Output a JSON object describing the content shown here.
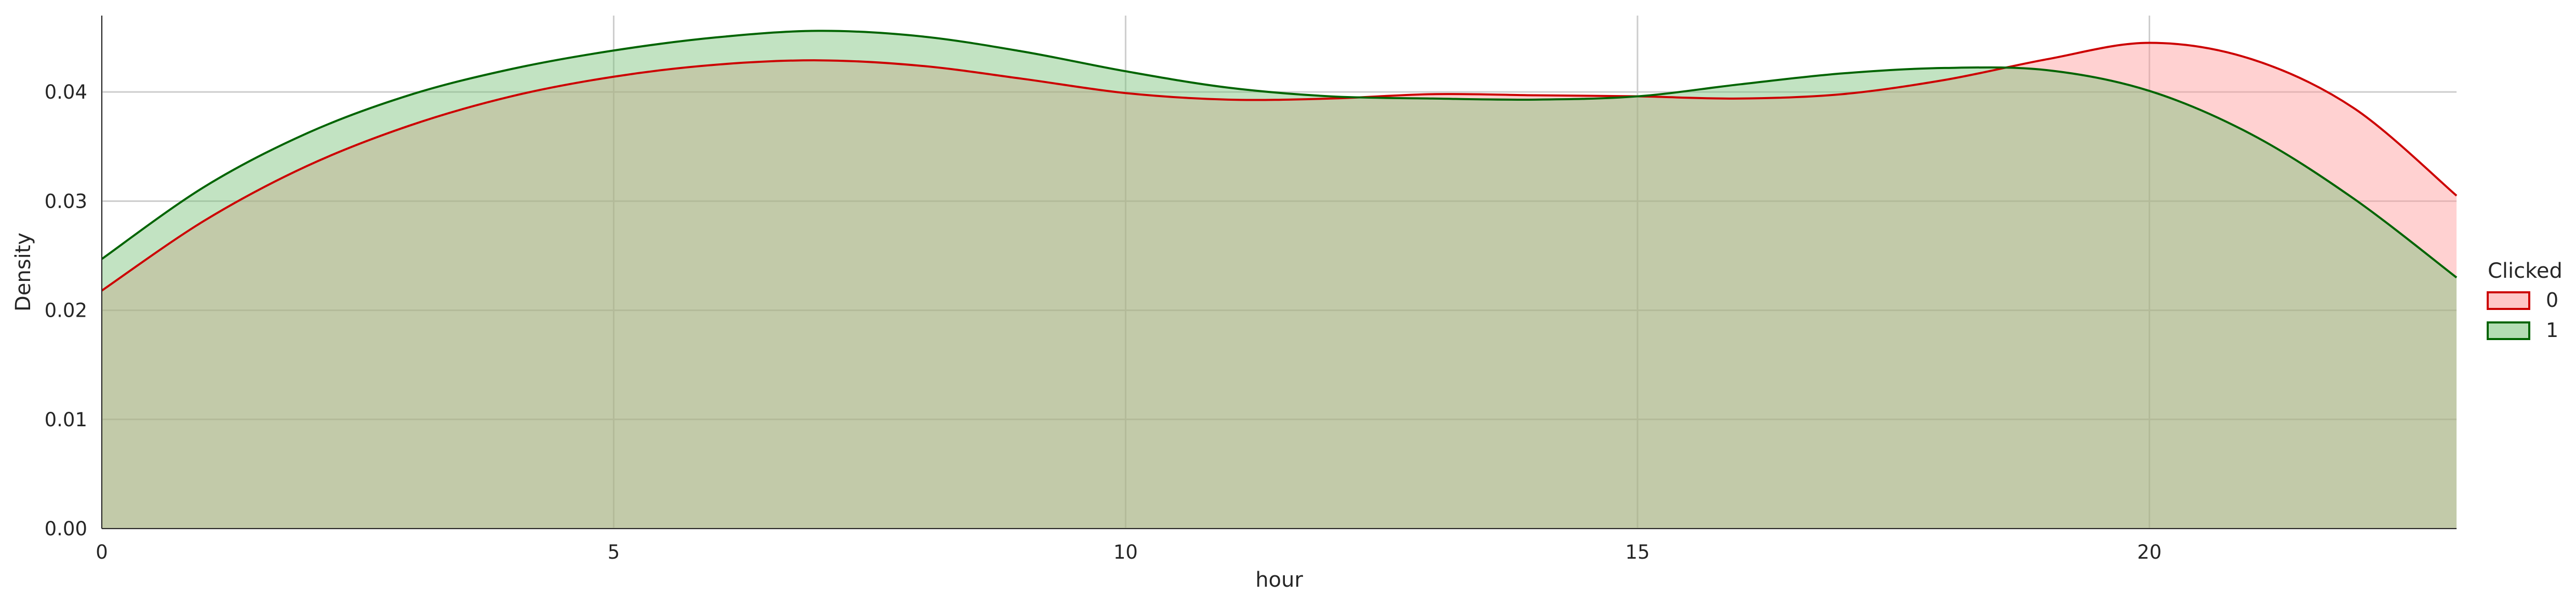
{
  "chart_data": {
    "type": "area",
    "title": "",
    "xlabel": "hour",
    "ylabel": "Density",
    "xlim": [
      0,
      23
    ],
    "ylim": [
      0,
      0.047
    ],
    "xticks": [
      0,
      5,
      10,
      15,
      20
    ],
    "xtick_labels": [
      "0",
      "5",
      "10",
      "15",
      "20"
    ],
    "yticks": [
      0,
      0.01,
      0.02,
      0.03,
      0.04
    ],
    "ytick_labels": [
      "0.00",
      "0.01",
      "0.02",
      "0.03",
      "0.04"
    ],
    "grid": true,
    "legend": {
      "title": "Clicked",
      "position": "right"
    },
    "series": [
      {
        "name": "0",
        "color": "#d62728",
        "line_color": "#cc0000",
        "fill_color": "#ff9999",
        "x": [
          0,
          1,
          2,
          3,
          4,
          5,
          6,
          7,
          8,
          9,
          10,
          11,
          12,
          13,
          14,
          15,
          16,
          17,
          18,
          19,
          20,
          21,
          22,
          23
        ],
        "y": [
          0.0218,
          0.0282,
          0.0332,
          0.0369,
          0.0396,
          0.0414,
          0.0425,
          0.0429,
          0.0424,
          0.0412,
          0.0399,
          0.0393,
          0.0394,
          0.0398,
          0.0397,
          0.0396,
          0.0394,
          0.0398,
          0.0411,
          0.043,
          0.0445,
          0.043,
          0.0385,
          0.0305
        ]
      },
      {
        "name": "1",
        "color": "#2ca02c",
        "line_color": "#006400",
        "fill_color": "#77c177",
        "x": [
          0,
          1,
          2,
          3,
          4,
          5,
          6,
          7,
          8,
          9,
          10,
          11,
          12,
          13,
          14,
          15,
          16,
          17,
          18,
          19,
          20,
          21,
          22,
          23
        ],
        "y": [
          0.0247,
          0.0313,
          0.0362,
          0.0397,
          0.0421,
          0.0438,
          0.045,
          0.0456,
          0.0451,
          0.0437,
          0.0419,
          0.0404,
          0.0396,
          0.0394,
          0.0393,
          0.0396,
          0.0407,
          0.0417,
          0.0422,
          0.042,
          0.0401,
          0.0361,
          0.0302,
          0.023
        ]
      }
    ]
  }
}
